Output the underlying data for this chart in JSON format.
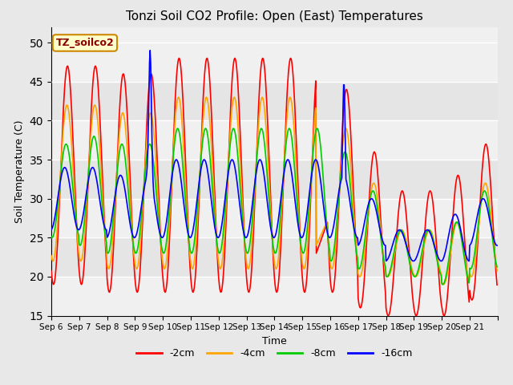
{
  "title": "Tonzi Soil CO2 Profile: Open (East) Temperatures",
  "xlabel": "Time",
  "ylabel": "Soil Temperature (C)",
  "ylim": [
    15,
    52
  ],
  "yticks": [
    15,
    20,
    25,
    30,
    35,
    40,
    45,
    50
  ],
  "legend_label": "TZ_soilco2",
  "legend_items": [
    "-2cm",
    "-4cm",
    "-8cm",
    "-16cm"
  ],
  "line_colors": [
    "#ff0000",
    "#ffa500",
    "#00cc00",
    "#0000ff"
  ],
  "plot_bg": "#f0f0f0",
  "fig_bg": "#e8e8e8",
  "x_labels": [
    "Sep 6",
    "Sep 7",
    "Sep 8",
    "Sep 9",
    "Sep 10",
    "Sep 11",
    "Sep 12",
    "Sep 13",
    "Sep 14",
    "Sep 15",
    "Sep 16",
    "Sep 17",
    "Sep 18",
    "Sep 19",
    "Sep 20",
    "Sep 21"
  ],
  "n_days": 16,
  "pts_per_day": 8,
  "amp_2cm": [
    14,
    13,
    14,
    15,
    15,
    15,
    15,
    15,
    15,
    15,
    15,
    13,
    9,
    9,
    9,
    10
  ],
  "mid_2cm": [
    32,
    32,
    32,
    31,
    31,
    31,
    31,
    31,
    31,
    31,
    30,
    27,
    23,
    23,
    23,
    26
  ],
  "amp_4cm": [
    10,
    9,
    10,
    11,
    11,
    11,
    11,
    11,
    11,
    11,
    11,
    9,
    4,
    4,
    4,
    6
  ],
  "mid_4cm": [
    31,
    30,
    30,
    30,
    30,
    30,
    30,
    30,
    30,
    30,
    29,
    27,
    23,
    23,
    23,
    25
  ],
  "amp_8cm": [
    7,
    7,
    7,
    8,
    8,
    8,
    8,
    8,
    8,
    8,
    8,
    6,
    4,
    4,
    4,
    5
  ],
  "mid_8cm": [
    30,
    29,
    29,
    29,
    29,
    29,
    29,
    29,
    29,
    29,
    28,
    27,
    23,
    23,
    23,
    25
  ],
  "amp_16cm": [
    4,
    4,
    4,
    4,
    4,
    4,
    4,
    4,
    4,
    4,
    4,
    3,
    2,
    2,
    2,
    3
  ],
  "mid_16cm": [
    30,
    29,
    29,
    29,
    29,
    29,
    29,
    29,
    29,
    29,
    28,
    27,
    24,
    24,
    24,
    26
  ],
  "phase_shift": 0.0
}
